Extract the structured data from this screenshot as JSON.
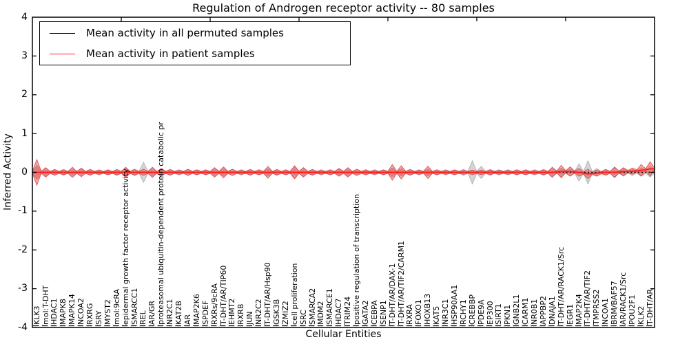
{
  "chart_data": {
    "type": "area",
    "title": "Regulation of Androgen receptor activity -- 80 samples",
    "xlabel": "Cellular Entities",
    "ylabel": "Inferred Activity",
    "ylim": [
      -4,
      4
    ],
    "y_ticks": [
      4,
      3,
      2,
      1,
      0,
      -1,
      -2,
      -3,
      -4
    ],
    "grid": false,
    "legend_position": "upper left",
    "n_categories": 70,
    "categories": [
      "KLK3",
      "mol:T-DHT",
      "HDAC1",
      "MAPK8",
      "MAPK14",
      "NCOA2",
      "RXRG",
      "SRY",
      "MYST2",
      "mol:9cRA",
      "epidermal growth factor receptor activity",
      "SMARCC1",
      "REL",
      "AR/GR",
      "proteasomal ubiquitin-dependent protein catabolic pr",
      "NR2C1",
      "KAT2B",
      "AR",
      "MAP2K6",
      "SPDEF",
      "RXRs/9cRA",
      "T-DHT/AR/TIP60",
      "EHMT2",
      "RXRB",
      "JUN",
      "NR2C2",
      "T-DHT/AR/Hsp90",
      "GSK3B",
      "ZMIZ2",
      "cell proliferation",
      "SRC",
      "SMARCA2",
      "MDM2",
      "SMARCE1",
      "HDAC7",
      "TRIM24",
      "positive regulation of transcription",
      "GATA2",
      "CEBPA",
      "SENP1",
      "T-DHT/AR/DAX-1",
      "T-DHT/AR/TIF2/CARM1",
      "RXRA",
      "FOXO1",
      "HOXB13",
      "KAT5",
      "NR3C1",
      "HSP90AA1",
      "RCHY1",
      "CREBBP",
      "PDE9A",
      "EP300",
      "SIRT1",
      "PKN1",
      "GNB2L1",
      "CARM1",
      "NR0B1",
      "APPBP2",
      "DNAJA1",
      "T-DHT/AR/RACK1/Src",
      "EGR1",
      "MAP2K4",
      "T-DHT/AR/TIF2",
      "TMPRSS2",
      "NCOA1",
      "BRM/BAF57",
      "AR/RACK1/Src",
      "POU2F1",
      "KLK2",
      "T-DHT/AR"
    ],
    "series": [
      {
        "name": "Mean activity in all permuted samples",
        "line_color": "#000000",
        "line_style": "dotted",
        "band_fill": "rgba(150,150,150,0.40)",
        "band_edge": "rgba(120,120,120,0.55)",
        "mean": [
          0,
          0,
          0,
          0,
          0,
          0,
          0,
          0,
          0,
          0,
          0,
          0,
          0,
          0,
          0,
          0,
          0,
          0,
          0,
          0,
          0,
          0,
          0,
          0,
          0,
          0,
          0,
          0,
          0,
          0,
          0,
          0,
          0,
          0,
          0,
          0,
          0,
          0,
          0,
          0,
          0,
          0,
          0,
          0,
          0,
          0,
          0,
          0,
          0,
          0,
          0,
          0,
          0,
          0,
          0,
          0,
          0,
          0,
          0,
          0,
          0,
          0,
          0,
          0,
          0,
          0,
          0,
          0,
          0,
          0
        ],
        "std": [
          0.2,
          0.1,
          0.08,
          0.08,
          0.09,
          0.08,
          0.08,
          0.07,
          0.07,
          0.08,
          0.1,
          0.09,
          0.26,
          0.1,
          0.08,
          0.08,
          0.07,
          0.08,
          0.07,
          0.07,
          0.09,
          0.1,
          0.08,
          0.07,
          0.08,
          0.07,
          0.1,
          0.08,
          0.07,
          0.14,
          0.1,
          0.08,
          0.07,
          0.07,
          0.08,
          0.09,
          0.08,
          0.07,
          0.07,
          0.07,
          0.12,
          0.1,
          0.08,
          0.07,
          0.09,
          0.07,
          0.07,
          0.07,
          0.08,
          0.3,
          0.16,
          0.08,
          0.07,
          0.07,
          0.07,
          0.07,
          0.07,
          0.08,
          0.1,
          0.11,
          0.1,
          0.22,
          0.3,
          0.1,
          0.08,
          0.14,
          0.1,
          0.08,
          0.1,
          0.12
        ]
      },
      {
        "name": "Mean activity in patient samples",
        "line_color": "#ff1a1a",
        "line_style": "solid",
        "band_fill": "rgba(237,85,85,0.45)",
        "band_edge": "rgba(215,45,45,0.75)",
        "mean": [
          0,
          0,
          0,
          0,
          0,
          0,
          0,
          0,
          0,
          0,
          0,
          0,
          0,
          0,
          0,
          0,
          0,
          0,
          0,
          0,
          0,
          0,
          0,
          0,
          0,
          0,
          0,
          0,
          0,
          0,
          0,
          0,
          0,
          0,
          0,
          0,
          0,
          0,
          0,
          0,
          0,
          0,
          0,
          0,
          0,
          0,
          0,
          0,
          0,
          0,
          0,
          0,
          0,
          0,
          0,
          0,
          0,
          0,
          0,
          0.02,
          0.02,
          0,
          -0.04,
          -0.02,
          0,
          0,
          0.02,
          0.03,
          0.05,
          0.09
        ],
        "std": [
          0.33,
          0.12,
          0.07,
          0.06,
          0.13,
          0.11,
          0.07,
          0.05,
          0.06,
          0.07,
          0.13,
          0.07,
          0.08,
          0.13,
          0.1,
          0.07,
          0.05,
          0.08,
          0.06,
          0.06,
          0.12,
          0.14,
          0.08,
          0.05,
          0.07,
          0.06,
          0.15,
          0.07,
          0.06,
          0.17,
          0.12,
          0.07,
          0.05,
          0.06,
          0.1,
          0.12,
          0.08,
          0.06,
          0.05,
          0.06,
          0.2,
          0.17,
          0.07,
          0.05,
          0.16,
          0.06,
          0.05,
          0.06,
          0.05,
          0.06,
          0.06,
          0.06,
          0.05,
          0.05,
          0.06,
          0.06,
          0.05,
          0.06,
          0.13,
          0.16,
          0.12,
          0.1,
          0.12,
          0.08,
          0.07,
          0.13,
          0.1,
          0.08,
          0.15,
          0.18
        ]
      }
    ]
  },
  "legend": {
    "items": [
      {
        "label": "Mean activity in all permuted samples",
        "color": "#000000"
      },
      {
        "label": "Mean activity in patient samples",
        "color": "#ff1a1a"
      }
    ]
  }
}
